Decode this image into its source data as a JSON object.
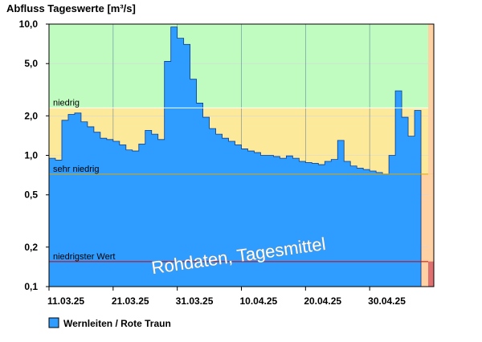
{
  "chart_data": {
    "type": "bar",
    "title": "Abfluss Tageswerte [m³/s]",
    "y_scale": "log",
    "ylim": [
      0.1,
      10.0
    ],
    "y_ticks": [
      {
        "value": 10.0,
        "label": "10,0"
      },
      {
        "value": 5.0,
        "label": "5,0"
      },
      {
        "value": 2.0,
        "label": "2,0"
      },
      {
        "value": 1.0,
        "label": "1,0"
      },
      {
        "value": 0.5,
        "label": "0,5"
      },
      {
        "value": 0.2,
        "label": "0,2"
      },
      {
        "value": 0.1,
        "label": "0,1"
      }
    ],
    "x_ticks": [
      "11.03.25",
      "21.03.25",
      "31.03.25",
      "10.04.25",
      "20.04.25",
      "30.04.25"
    ],
    "x_tick_day_index": [
      0,
      10,
      20,
      30,
      40,
      50
    ],
    "days_in_plot": 60,
    "thresholds": [
      {
        "name": "niedrig",
        "value": 2.3,
        "color": "#ffffff"
      },
      {
        "name": "sehr niedrig",
        "value": 0.72,
        "color": "#e0a800"
      },
      {
        "name": "niedrigster Wert",
        "value": 0.155,
        "color": "#d00000"
      }
    ],
    "zones": [
      {
        "from": 2.3,
        "to": 10.0,
        "color": "#c0fcc0"
      },
      {
        "from": 0.72,
        "to": 2.3,
        "color": "#fde99a"
      },
      {
        "from": 0.1,
        "to": 0.72,
        "color": "#ffd1a3"
      }
    ],
    "right_edge_colors": [
      {
        "from": 0.72,
        "to": 10.0,
        "color": "#ffd1a3"
      },
      {
        "from": 0.155,
        "to": 0.72,
        "color": "#ffd1a3"
      },
      {
        "from": 0.1,
        "to": 0.155,
        "color": "#e07070"
      }
    ],
    "series": [
      {
        "name": "Wernleiten / Rote Traun",
        "color": "#2f9dff",
        "values": [
          0.95,
          0.92,
          1.85,
          2.05,
          2.1,
          1.8,
          1.65,
          1.5,
          1.35,
          1.32,
          1.28,
          1.2,
          1.1,
          1.08,
          1.22,
          1.55,
          1.45,
          1.32,
          5.2,
          9.5,
          7.8,
          7.0,
          3.8,
          2.5,
          1.95,
          1.6,
          1.45,
          1.35,
          1.28,
          1.2,
          1.12,
          1.08,
          1.05,
          1.0,
          1.0,
          0.98,
          0.95,
          0.99,
          0.95,
          0.9,
          0.88,
          0.87,
          0.85,
          0.9,
          0.93,
          1.3,
          0.9,
          0.83,
          0.8,
          0.78,
          0.76,
          0.74,
          0.72,
          1.0,
          3.1,
          1.95,
          1.4,
          2.2
        ]
      }
    ],
    "annotation": "Rohdaten, Tagesmittel"
  },
  "legend": {
    "label": "Wernleiten / Rote Traun",
    "color": "#2f9dff"
  }
}
